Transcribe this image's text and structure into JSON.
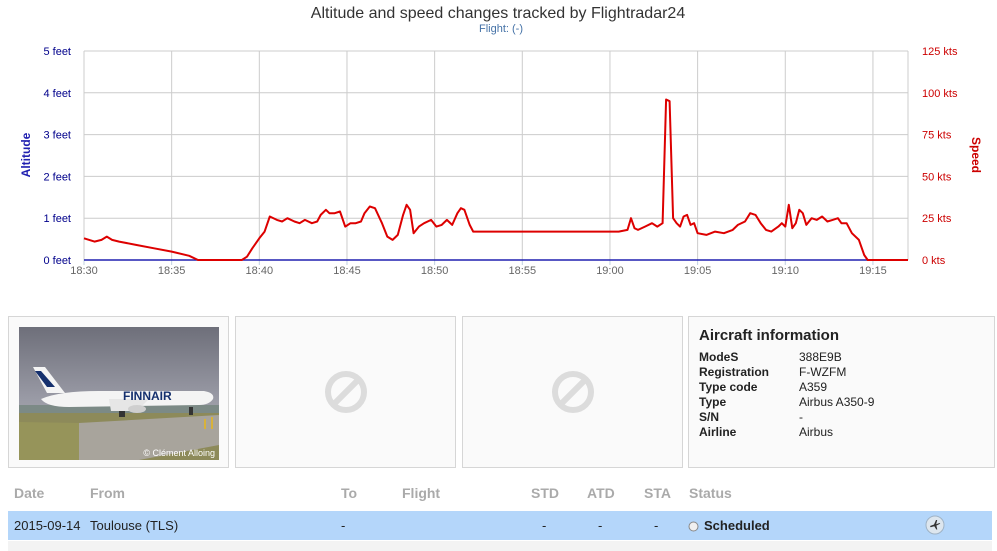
{
  "chart_data": {
    "type": "line",
    "title": "Altitude and speed changes tracked by Flightradar24",
    "subtitle": "Flight: (-)",
    "xlabel": "",
    "ylabel_left": "Altitude",
    "ylabel_right": "Speed",
    "x_ticks": [
      "18:30",
      "18:35",
      "18:40",
      "18:45",
      "18:50",
      "18:55",
      "19:00",
      "19:05",
      "19:10",
      "19:15"
    ],
    "y_left_ticks": [
      "0 feet",
      "1 feet",
      "2 feet",
      "3 feet",
      "4 feet",
      "5 feet"
    ],
    "y_right_ticks": [
      "0 kts",
      "25 kts",
      "50 kts",
      "75 kts",
      "100 kts",
      "125 kts"
    ],
    "x_range_minutes": [
      0,
      47
    ],
    "y_left_range": [
      0,
      5
    ],
    "y_right_range": [
      0,
      125
    ],
    "grid": true,
    "colors": {
      "altitude": "#2020b0",
      "speed": "#dd0000",
      "grid": "#cccccc"
    },
    "series": [
      {
        "name": "Altitude",
        "axis": "left",
        "points": [
          [
            0,
            0
          ],
          [
            47,
            0
          ]
        ]
      },
      {
        "name": "Speed",
        "axis": "right",
        "points": [
          [
            0,
            13
          ],
          [
            0.6,
            11
          ],
          [
            1,
            12
          ],
          [
            1.3,
            14
          ],
          [
            1.6,
            12
          ],
          [
            2,
            11
          ],
          [
            3,
            9
          ],
          [
            4,
            7
          ],
          [
            5,
            5
          ],
          [
            6,
            2.5
          ],
          [
            6.5,
            0
          ],
          [
            9,
            0
          ],
          [
            9.3,
            2
          ],
          [
            9.6,
            7
          ],
          [
            10,
            13
          ],
          [
            10.3,
            17
          ],
          [
            10.6,
            26
          ],
          [
            11,
            24
          ],
          [
            11.3,
            23
          ],
          [
            11.6,
            25
          ],
          [
            12,
            23
          ],
          [
            12.3,
            22
          ],
          [
            12.6,
            24
          ],
          [
            13,
            22
          ],
          [
            13.3,
            23
          ],
          [
            13.5,
            27
          ],
          [
            13.8,
            30
          ],
          [
            14,
            28
          ],
          [
            14.3,
            28
          ],
          [
            14.6,
            29
          ],
          [
            14.9,
            20
          ],
          [
            15.2,
            22
          ],
          [
            15.5,
            22
          ],
          [
            15.8,
            23
          ],
          [
            16,
            28
          ],
          [
            16.3,
            32
          ],
          [
            16.6,
            31
          ],
          [
            17,
            22
          ],
          [
            17.3,
            14
          ],
          [
            17.6,
            12
          ],
          [
            17.9,
            15
          ],
          [
            18.2,
            27
          ],
          [
            18.4,
            33
          ],
          [
            18.6,
            30
          ],
          [
            18.8,
            16
          ],
          [
            19.1,
            20
          ],
          [
            19.4,
            22
          ],
          [
            19.8,
            24
          ],
          [
            20.1,
            20
          ],
          [
            20.4,
            21
          ],
          [
            20.7,
            24
          ],
          [
            21,
            21
          ],
          [
            21.3,
            28
          ],
          [
            21.5,
            31
          ],
          [
            21.7,
            30
          ],
          [
            22,
            21
          ],
          [
            22.2,
            17
          ],
          [
            23,
            17
          ],
          [
            25,
            17
          ],
          [
            27,
            17
          ],
          [
            29,
            17
          ],
          [
            30.5,
            17
          ],
          [
            31,
            18
          ],
          [
            31.2,
            25
          ],
          [
            31.4,
            19
          ],
          [
            31.6,
            18
          ],
          [
            32,
            20
          ],
          [
            32.4,
            22
          ],
          [
            32.7,
            20
          ],
          [
            33,
            22
          ],
          [
            33.2,
            96
          ],
          [
            33.4,
            95
          ],
          [
            33.6,
            25
          ],
          [
            33.8,
            22
          ],
          [
            34,
            20
          ],
          [
            34.2,
            26
          ],
          [
            34.4,
            27
          ],
          [
            34.6,
            21
          ],
          [
            34.8,
            22
          ],
          [
            35,
            16
          ],
          [
            35.5,
            15
          ],
          [
            36,
            17
          ],
          [
            36.5,
            16
          ],
          [
            37,
            18
          ],
          [
            37.3,
            21
          ],
          [
            37.7,
            23
          ],
          [
            38,
            28
          ],
          [
            38.3,
            27
          ],
          [
            38.6,
            22
          ],
          [
            38.9,
            18
          ],
          [
            39.2,
            17
          ],
          [
            39.6,
            20
          ],
          [
            39.8,
            22
          ],
          [
            40,
            20
          ],
          [
            40.2,
            33
          ],
          [
            40.4,
            19
          ],
          [
            40.6,
            22
          ],
          [
            40.8,
            30
          ],
          [
            41,
            28
          ],
          [
            41.2,
            21
          ],
          [
            41.5,
            25
          ],
          [
            41.8,
            24
          ],
          [
            42.1,
            26
          ],
          [
            42.4,
            23
          ],
          [
            42.7,
            24
          ],
          [
            43,
            25
          ],
          [
            43.2,
            22
          ],
          [
            43.5,
            22
          ],
          [
            43.8,
            16
          ],
          [
            44.2,
            12
          ],
          [
            44.5,
            3
          ],
          [
            44.7,
            0
          ],
          [
            47,
            0
          ]
        ]
      }
    ]
  },
  "aircraft": {
    "photo_credit": "© Clément Alloing",
    "title": "Aircraft information",
    "rows": [
      {
        "label": "ModeS",
        "value": "388E9B"
      },
      {
        "label": "Registration",
        "value": "F-WZFM"
      },
      {
        "label": "Type code",
        "value": "A359"
      },
      {
        "label": "Type",
        "value": "Airbus A350-9"
      },
      {
        "label": "S/N",
        "value": "-"
      },
      {
        "label": "Airline",
        "value": "Airbus"
      }
    ]
  },
  "table": {
    "headers": {
      "date": "Date",
      "from": "From",
      "to": "To",
      "flight": "Flight",
      "std": "STD",
      "atd": "ATD",
      "sta": "STA",
      "status": "Status"
    },
    "row": {
      "date": "2015-09-14",
      "from": "Toulouse (TLS)",
      "to": "-",
      "flight": "",
      "std": "-",
      "atd": "-",
      "sta": "-",
      "status": "Scheduled"
    }
  }
}
